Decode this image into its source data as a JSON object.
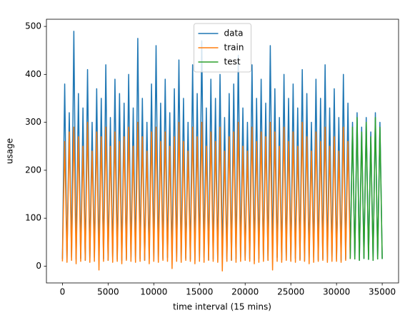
{
  "chart_data": {
    "type": "line",
    "xlabel": "time interval (15 mins)",
    "ylabel": "usage",
    "x": [
      0,
      250,
      500,
      750,
      1000,
      1250,
      1500,
      1750,
      2000,
      2250,
      2500,
      2750,
      3000,
      3250,
      3500,
      3750,
      4000,
      4250,
      4500,
      4750,
      5000,
      5250,
      5500,
      5750,
      6000,
      6250,
      6500,
      6750,
      7000,
      7250,
      7500,
      7750,
      8000,
      8250,
      8500,
      8750,
      9000,
      9250,
      9500,
      9750,
      10000,
      10250,
      10500,
      10750,
      11000,
      11250,
      11500,
      11750,
      12000,
      12250,
      12500,
      12750,
      13000,
      13250,
      13500,
      13750,
      14000,
      14250,
      14500,
      14750,
      15000,
      15250,
      15500,
      15750,
      16000,
      16250,
      16500,
      16750,
      17000,
      17250,
      17500,
      17750,
      18000,
      18250,
      18500,
      18750,
      19000,
      19250,
      19500,
      19750,
      20000,
      20250,
      20500,
      20750,
      21000,
      21250,
      21500,
      21750,
      22000,
      22250,
      22500,
      22750,
      23000,
      23250,
      23500,
      23750,
      24000,
      24250,
      24500,
      24750,
      25000,
      25250,
      25500,
      25750,
      26000,
      26250,
      26500,
      26750,
      27000,
      27250,
      27500,
      27750,
      28000,
      28250,
      28500,
      28750,
      29000,
      29250,
      29500,
      29750,
      30000,
      30250,
      30500,
      30750,
      31000,
      31250,
      31500,
      31750,
      32000,
      32250,
      32500,
      32750,
      33000,
      33250,
      33500,
      33750,
      34000,
      34250,
      34500,
      34750,
      35000
    ],
    "series": [
      {
        "name": "data",
        "color": "#1f77b4",
        "values": [
          15,
          380,
          12,
          320,
          18,
          490,
          14,
          360,
          16,
          330,
          12,
          410,
          15,
          300,
          18,
          370,
          13,
          350,
          15,
          420,
          12,
          310,
          16,
          390,
          14,
          360,
          12,
          340,
          15,
          400,
          18,
          330,
          13,
          475,
          15,
          350,
          12,
          300,
          16,
          380,
          14,
          460,
          12,
          340,
          15,
          390,
          18,
          320,
          13,
          370,
          15,
          430,
          12,
          350,
          16,
          300,
          14,
          420,
          12,
          360,
          15,
          470,
          18,
          330,
          13,
          390,
          15,
          350,
          12,
          400,
          16,
          310,
          14,
          360,
          12,
          380,
          15,
          440,
          18,
          330,
          13,
          300,
          15,
          420,
          12,
          350,
          16,
          390,
          14,
          340,
          12,
          460,
          15,
          370,
          18,
          310,
          13,
          400,
          15,
          350,
          12,
          380,
          16,
          330,
          14,
          410,
          12,
          360,
          15,
          300,
          18,
          390,
          13,
          350,
          15,
          420,
          12,
          330,
          16,
          370,
          14,
          310,
          12,
          400,
          15,
          340,
          18,
          300,
          15,
          320,
          12,
          290,
          16,
          310,
          14,
          280,
          12,
          320,
          15,
          300,
          15
        ]
      },
      {
        "name": "train",
        "color": "#ff7f0e",
        "values": [
          10,
          260,
          8,
          280,
          12,
          290,
          5,
          270,
          10,
          250,
          12,
          300,
          8,
          240,
          10,
          280,
          -8,
          270,
          10,
          290,
          12,
          250,
          8,
          280,
          10,
          260,
          5,
          270,
          12,
          290,
          10,
          250,
          8,
          300,
          10,
          270,
          12,
          240,
          5,
          280,
          10,
          290,
          8,
          260,
          12,
          280,
          10,
          250,
          -5,
          270,
          10,
          300,
          8,
          260,
          12,
          240,
          10,
          290,
          5,
          270,
          10,
          300,
          8,
          250,
          12,
          280,
          10,
          260,
          8,
          290,
          -10,
          240,
          10,
          270,
          12,
          280,
          8,
          300,
          10,
          250,
          12,
          240,
          10,
          290,
          5,
          260,
          8,
          280,
          10,
          270,
          12,
          300,
          -8,
          280,
          10,
          250,
          8,
          290,
          12,
          260,
          10,
          280,
          8,
          250,
          12,
          300,
          10,
          270,
          5,
          240,
          8,
          280,
          10,
          260,
          12,
          290,
          8,
          250,
          10,
          270,
          10,
          240,
          8,
          290,
          12,
          260,
          15,
          null,
          null,
          null,
          null,
          null,
          null,
          null,
          null,
          null,
          null,
          null,
          null,
          null,
          null
        ]
      },
      {
        "name": "test",
        "color": "#2ca02c",
        "values": [
          null,
          null,
          null,
          null,
          null,
          null,
          null,
          null,
          null,
          null,
          null,
          null,
          null,
          null,
          null,
          null,
          null,
          null,
          null,
          null,
          null,
          null,
          null,
          null,
          null,
          null,
          null,
          null,
          null,
          null,
          null,
          null,
          null,
          null,
          null,
          null,
          null,
          null,
          null,
          null,
          null,
          null,
          null,
          null,
          null,
          null,
          null,
          null,
          null,
          null,
          null,
          null,
          null,
          null,
          null,
          null,
          null,
          null,
          null,
          null,
          null,
          null,
          null,
          null,
          null,
          null,
          null,
          null,
          null,
          null,
          null,
          null,
          null,
          null,
          null,
          null,
          null,
          null,
          null,
          null,
          null,
          null,
          null,
          null,
          null,
          null,
          null,
          null,
          null,
          null,
          null,
          null,
          null,
          null,
          null,
          null,
          null,
          null,
          null,
          null,
          null,
          null,
          null,
          null,
          null,
          null,
          null,
          null,
          null,
          null,
          null,
          null,
          null,
          null,
          null,
          null,
          null,
          null,
          null,
          null,
          null,
          null,
          null,
          null,
          null,
          null,
          15,
          290,
          15,
          310,
          12,
          280,
          16,
          300,
          14,
          270,
          12,
          310,
          15,
          290,
          15
        ]
      }
    ],
    "xlim": [
      -1750,
      36790
    ],
    "ylim": [
      -35,
      515
    ],
    "xticks": [
      0,
      5000,
      10000,
      15000,
      20000,
      25000,
      30000,
      35000
    ],
    "yticks": [
      0,
      100,
      200,
      300,
      400,
      500
    ],
    "legend": "upper center"
  }
}
